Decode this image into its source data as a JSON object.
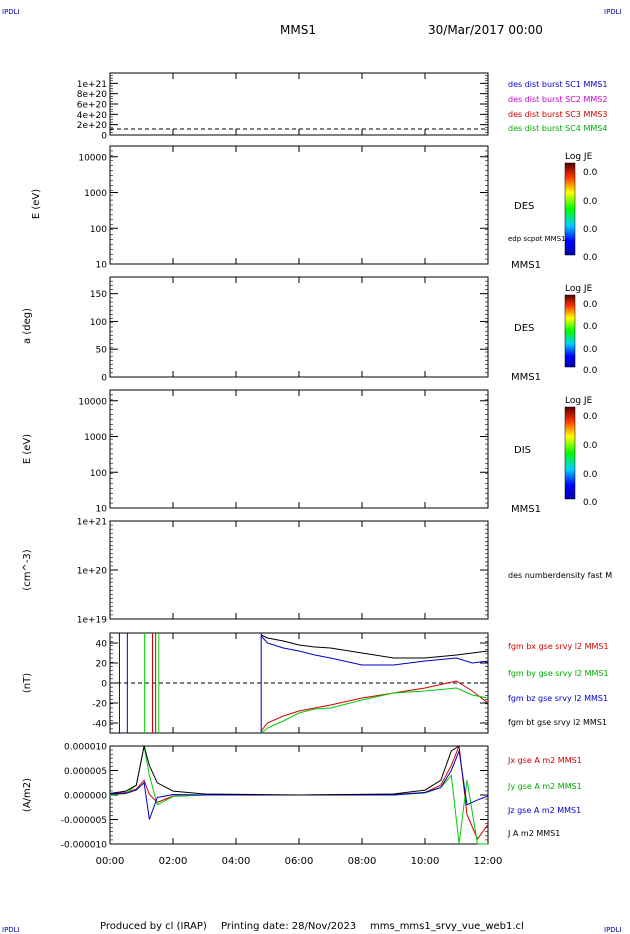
{
  "corner_labels": {
    "top_left": "IPDLI",
    "top_right": "IPDLI",
    "bottom_left": "IPDLI",
    "bottom_right": "IPDLI"
  },
  "header": {
    "title": "MMS1",
    "date": "30/Mar/2017 00:00"
  },
  "footer": {
    "produced_by": "Produced by cl (IRAP)",
    "printing_date": "Printing date: 28/Nov/2023",
    "file": "mms_mms1_srvy_vue_web1.cl"
  },
  "colors": {
    "axis": "#000000",
    "blue": "#0000cc",
    "magenta": "#cc00cc",
    "red": "#cc0000",
    "green": "#00cc00",
    "black": "#000000"
  },
  "chart_data": [
    {
      "type": "line",
      "title": "",
      "ylabel": "",
      "ylim": [
        0,
        1.2e+21
      ],
      "yticks": [
        "0",
        "2e+20",
        "4e+20",
        "6e+20",
        "8e+20",
        "1e+21"
      ],
      "annotations": [
        "0"
      ],
      "legend_placement": "right",
      "series": [
        {
          "name": "des dist burst SC1 MMS1",
          "color": "#0000cc",
          "values": []
        },
        {
          "name": "des dist burst SC2 MMS2",
          "color": "#cc00cc",
          "values": []
        },
        {
          "name": "des dist burst SC3 MMS3",
          "color": "#cc0000",
          "values": []
        },
        {
          "name": "des dist burst SC4 MMS4",
          "color": "#00cc00",
          "values": []
        }
      ]
    },
    {
      "type": "heatmap",
      "ylabel": "E (eV)",
      "yscale": "log",
      "ylim": [
        10,
        20000
      ],
      "yticks": [
        "10",
        "100",
        "1000",
        "10000"
      ],
      "instrument": "DES",
      "spacecraft": "MMS1",
      "overlay": "edp scpot MMS1",
      "colorbar": {
        "title": "Log JE",
        "ticks": [
          "0.0",
          "0.0",
          "0.0",
          "0.0"
        ]
      }
    },
    {
      "type": "heatmap",
      "ylabel": "a (deg)",
      "ylim": [
        0,
        180
      ],
      "yticks": [
        "0",
        "50",
        "100",
        "150"
      ],
      "instrument": "DES",
      "spacecraft": "MMS1",
      "colorbar": {
        "title": "Log JE",
        "ticks": [
          "0.0",
          "0.0",
          "0.0",
          "0.0"
        ]
      }
    },
    {
      "type": "heatmap",
      "ylabel": "E (eV)",
      "yscale": "log",
      "ylim": [
        10,
        20000
      ],
      "yticks": [
        "10",
        "100",
        "1000",
        "10000"
      ],
      "instrument": "DIS",
      "spacecraft": "MMS1",
      "colorbar": {
        "title": "Log JE",
        "ticks": [
          "0.0",
          "0.0",
          "0.0",
          "0.0"
        ]
      }
    },
    {
      "type": "line",
      "ylabel": "(cm^-3)",
      "yscale": "log",
      "ylim": [
        1e+19,
        1e+21
      ],
      "yticks": [
        "1e+19",
        "1e+20",
        "1e+21"
      ],
      "series": [
        {
          "name": "des numberdensity fast M",
          "color": "#000000",
          "values": []
        }
      ]
    },
    {
      "type": "line",
      "ylabel": "(nT)",
      "ylim": [
        -50,
        50
      ],
      "yticks": [
        "-40",
        "-20",
        "0",
        "20",
        "40"
      ],
      "x": [
        "00:20",
        "01:00",
        "01:20",
        "01:25",
        "01:35",
        "02:20",
        "04:48",
        "05:00",
        "05:30",
        "06:00",
        "06:30",
        "07:00",
        "08:00",
        "09:00",
        "10:00",
        "11:00",
        "11:30",
        "12:00"
      ],
      "series": [
        {
          "name": "fgm bx gse srvy l2 MMS1",
          "color": "#cc0000",
          "values": [
            null,
            null,
            null,
            null,
            null,
            null,
            -48,
            -40,
            -33,
            -28,
            -25,
            -22,
            -15,
            -10,
            -5,
            2,
            -8,
            -20
          ]
        },
        {
          "name": "fgm by gse srvy l2 MMS1",
          "color": "#00cc00",
          "values": [
            null,
            null,
            null,
            null,
            null,
            null,
            -50,
            -45,
            -38,
            -30,
            -26,
            -25,
            -17,
            -10,
            -8,
            -5,
            -12,
            -15
          ]
        },
        {
          "name": "fgm bz gse srvy l2 MMS1",
          "color": "#0000cc",
          "values": [
            null,
            null,
            null,
            null,
            null,
            null,
            47,
            40,
            35,
            32,
            28,
            25,
            18,
            18,
            22,
            25,
            20,
            22
          ]
        },
        {
          "name": "fgm bt gse srvy l2 MMS1",
          "color": "#000000",
          "values": [
            null,
            null,
            null,
            null,
            null,
            null,
            48,
            45,
            42,
            38,
            36,
            35,
            30,
            25,
            25,
            28,
            30,
            32
          ]
        }
      ]
    },
    {
      "type": "line",
      "ylabel": "(A/m2)",
      "ylim": [
        -1e-05,
        1e-05
      ],
      "yticks": [
        "-0.000010",
        "-0.000005",
        "0.000000",
        "0.000005",
        "0.000010"
      ],
      "xticks": [
        "00:00",
        "02:00",
        "04:00",
        "06:00",
        "08:00",
        "10:00",
        "12:00"
      ],
      "x": [
        "00:00",
        "00:30",
        "00:50",
        "01:05",
        "01:15",
        "01:30",
        "02:00",
        "03:00",
        "06:00",
        "09:00",
        "10:00",
        "10:30",
        "10:50",
        "11:05",
        "11:20",
        "11:40",
        "12:00"
      ],
      "series": [
        {
          "name": "Jx gse A m2 MMS1",
          "color": "#cc0000",
          "values": [
            2e-07,
            5e-07,
            1.2e-06,
            3e-06,
            1e-07,
            -1.5e-06,
            -2e-07,
            0.0,
            0.0,
            1e-07,
            5e-07,
            2e-06,
            6e-06,
            1e-05,
            -4e-06,
            -9e-06,
            -6e-06
          ]
        },
        {
          "name": "Jy gse A m2 MMS1",
          "color": "#00cc00",
          "values": [
            0.0,
            3e-07,
            2e-06,
            1e-05,
            4e-06,
            -2e-06,
            -3e-07,
            0.0,
            0.0,
            0.0,
            4e-07,
            1.5e-06,
            4e-06,
            -1e-05,
            3e-06,
            -1e-05,
            -1e-05
          ]
        },
        {
          "name": "Jz gse A m2 MMS1",
          "color": "#0000cc",
          "values": [
            2e-07,
            3e-07,
            1e-06,
            2.5e-06,
            -5e-06,
            -5e-07,
            1e-07,
            0.0,
            0.0,
            0.0,
            5e-07,
            1.5e-06,
            5e-06,
            9e-06,
            -2e-06,
            -1e-06,
            -2e-07
          ]
        },
        {
          "name": "J A m2 MMS1",
          "color": "#000000",
          "values": [
            3e-07,
            8e-07,
            2e-06,
            1e-05,
            6e-06,
            2.5e-06,
            8e-07,
            2e-07,
            0.0,
            2e-07,
            1e-06,
            3e-06,
            9e-06,
            1e-05,
            1e-05,
            1e-05,
            1e-05
          ]
        }
      ]
    }
  ]
}
